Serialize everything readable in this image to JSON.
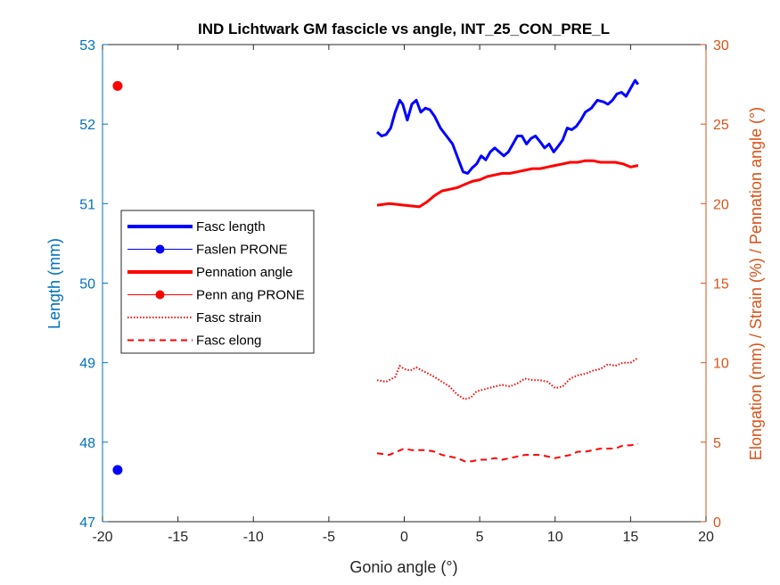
{
  "chart_data": {
    "type": "line",
    "title": "IND Lichtwark GM fascicle vs angle, INT_25_CON_PRE_L",
    "xlabel": "Gonio angle (°)",
    "ylabel_left": "Length (mm)",
    "ylabel_right": "Elongation (mm) / Strain (%) / Pennation angle (°)",
    "xlim": [
      -20,
      20
    ],
    "ylim_left": [
      47,
      53
    ],
    "ylim_right": [
      0,
      30
    ],
    "xticks": [
      "-20",
      "-15",
      "-10",
      "-5",
      "0",
      "5",
      "10",
      "15",
      "20"
    ],
    "yticks_left": [
      "47",
      "48",
      "49",
      "50",
      "51",
      "52",
      "53"
    ],
    "yticks_right": [
      "0",
      "5",
      "10",
      "15",
      "20",
      "25",
      "30"
    ],
    "legend_position": "left",
    "legend": [
      "Fasc length",
      "Faslen PRONE",
      "Pennation angle",
      "Penn ang PRONE",
      "Fasc strain",
      "Fasc elong"
    ],
    "colors": {
      "left_axis": "#0072BD",
      "right_axis": "#D95319",
      "blue": "#0000FF",
      "red": "#FF0000"
    },
    "series": [
      {
        "name": "Fasc length",
        "axis": "left",
        "style": "solid-thick",
        "color": "#0000FF",
        "x": [
          -1.8,
          -1.5,
          -1.2,
          -0.9,
          -0.6,
          -0.3,
          -0.1,
          0.2,
          0.5,
          0.8,
          1.1,
          1.4,
          1.7,
          2.0,
          2.4,
          2.8,
          3.2,
          3.6,
          3.9,
          4.2,
          4.5,
          4.8,
          5.1,
          5.4,
          5.7,
          6.0,
          6.3,
          6.6,
          6.9,
          7.2,
          7.5,
          7.8,
          8.1,
          8.4,
          8.7,
          9.0,
          9.3,
          9.6,
          9.9,
          10.2,
          10.5,
          10.8,
          11.1,
          11.4,
          11.7,
          12.0,
          12.4,
          12.8,
          13.2,
          13.5,
          13.8,
          14.1,
          14.4,
          14.7,
          15.0,
          15.3,
          15.5
        ],
        "y": [
          51.9,
          51.85,
          51.87,
          51.95,
          52.15,
          52.3,
          52.25,
          52.05,
          52.25,
          52.3,
          52.15,
          52.2,
          52.18,
          52.1,
          51.95,
          51.85,
          51.75,
          51.55,
          51.4,
          51.38,
          51.45,
          51.5,
          51.6,
          51.55,
          51.65,
          51.7,
          51.65,
          51.6,
          51.65,
          51.75,
          51.85,
          51.85,
          51.75,
          51.82,
          51.85,
          51.78,
          51.7,
          51.75,
          51.65,
          51.72,
          51.8,
          51.95,
          51.93,
          51.97,
          52.05,
          52.15,
          52.2,
          52.3,
          52.28,
          52.25,
          52.3,
          52.38,
          52.4,
          52.35,
          52.45,
          52.55,
          52.5
        ]
      },
      {
        "name": "Faslen PRONE",
        "axis": "left",
        "style": "marker",
        "color": "#0000FF",
        "x": [
          -19
        ],
        "y": [
          47.65
        ]
      },
      {
        "name": "Pennation angle",
        "axis": "right",
        "style": "solid-thick",
        "color": "#FF0000",
        "x": [
          -1.8,
          -1.0,
          0.0,
          1.0,
          1.5,
          2.0,
          2.5,
          3.0,
          3.5,
          4.0,
          4.5,
          5.0,
          5.5,
          6.0,
          6.5,
          7.0,
          7.5,
          8.0,
          8.5,
          9.0,
          9.5,
          10.0,
          10.5,
          11.0,
          11.5,
          12.0,
          12.5,
          13.0,
          13.5,
          14.0,
          14.5,
          15.0,
          15.5
        ],
        "y": [
          19.9,
          20.0,
          19.9,
          19.8,
          20.1,
          20.5,
          20.8,
          20.9,
          21.0,
          21.2,
          21.4,
          21.5,
          21.7,
          21.8,
          21.9,
          21.9,
          22.0,
          22.1,
          22.2,
          22.2,
          22.3,
          22.4,
          22.5,
          22.6,
          22.6,
          22.7,
          22.7,
          22.6,
          22.6,
          22.6,
          22.5,
          22.3,
          22.4
        ]
      },
      {
        "name": "Penn ang PRONE",
        "axis": "right",
        "style": "marker",
        "color": "#FF0000",
        "x": [
          -19
        ],
        "y": [
          27.4
        ]
      },
      {
        "name": "Fasc strain",
        "axis": "right",
        "style": "dotted",
        "color": "#FF0000",
        "x": [
          -1.8,
          -1.2,
          -0.6,
          -0.3,
          0.0,
          0.4,
          0.8,
          1.2,
          1.6,
          2.0,
          2.5,
          3.0,
          3.5,
          4.0,
          4.4,
          4.8,
          5.2,
          5.6,
          6.0,
          6.5,
          7.0,
          7.5,
          8.0,
          8.5,
          9.0,
          9.5,
          10.0,
          10.5,
          11.0,
          11.5,
          12.0,
          12.5,
          13.0,
          13.5,
          14.0,
          14.5,
          15.0,
          15.5
        ],
        "y": [
          8.9,
          8.8,
          9.1,
          9.8,
          9.6,
          9.5,
          9.7,
          9.5,
          9.3,
          9.1,
          8.8,
          8.5,
          8.0,
          7.7,
          7.8,
          8.2,
          8.3,
          8.4,
          8.5,
          8.6,
          8.5,
          8.7,
          9.0,
          8.9,
          8.9,
          8.8,
          8.4,
          8.5,
          9.0,
          9.2,
          9.3,
          9.5,
          9.6,
          9.9,
          9.8,
          10.0,
          10.0,
          10.3
        ]
      },
      {
        "name": "Fasc elong",
        "axis": "right",
        "style": "dashed",
        "color": "#FF0000",
        "x": [
          -1.8,
          -1.0,
          -0.5,
          0.0,
          0.5,
          1.0,
          1.5,
          2.0,
          2.5,
          3.0,
          3.5,
          4.0,
          4.5,
          5.0,
          5.5,
          6.0,
          6.5,
          7.0,
          7.5,
          8.0,
          8.5,
          9.0,
          9.5,
          10.0,
          10.5,
          11.0,
          11.5,
          12.0,
          12.5,
          13.0,
          13.5,
          14.0,
          14.5,
          15.0,
          15.5
        ],
        "y": [
          4.3,
          4.2,
          4.4,
          4.6,
          4.5,
          4.5,
          4.5,
          4.4,
          4.2,
          4.1,
          4.0,
          3.8,
          3.8,
          3.9,
          3.9,
          4.0,
          3.9,
          4.0,
          4.1,
          4.2,
          4.2,
          4.2,
          4.1,
          4.0,
          4.1,
          4.2,
          4.4,
          4.4,
          4.5,
          4.6,
          4.6,
          4.6,
          4.8,
          4.8,
          4.9
        ]
      }
    ]
  }
}
